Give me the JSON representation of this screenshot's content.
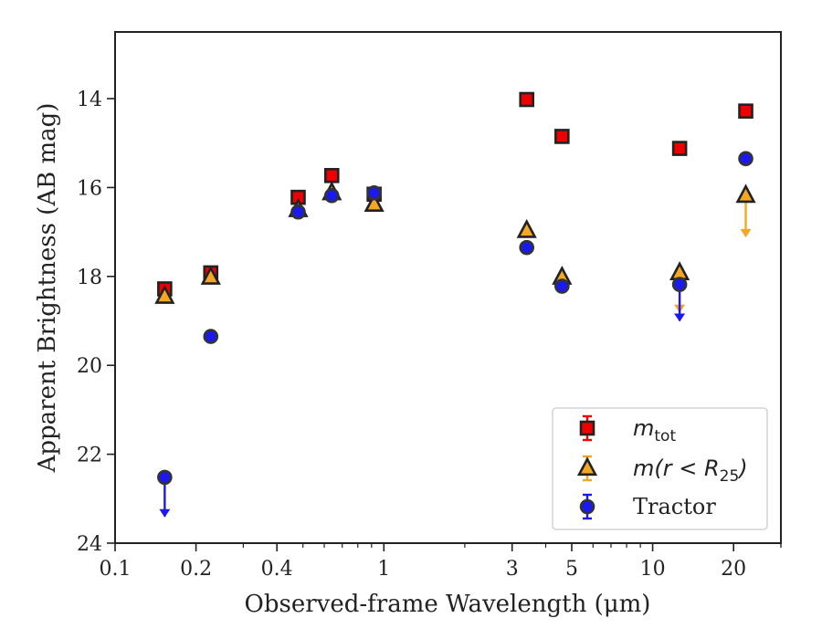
{
  "chart_data": {
    "type": "scatter",
    "xlabel": "Observed-frame Wavelength (μm)",
    "ylabel": "Apparent Brightness (AB mag)",
    "x_scale": "log",
    "xlim": [
      0.1,
      30
    ],
    "ylim": [
      24,
      12.5
    ],
    "y_inverted": true,
    "x_ticks": [
      {
        "value": 0.1,
        "label": "0.1"
      },
      {
        "value": 0.2,
        "label": "0.2"
      },
      {
        "value": 0.4,
        "label": "0.4"
      },
      {
        "value": 1,
        "label": "1"
      },
      {
        "value": 3,
        "label": "3"
      },
      {
        "value": 5,
        "label": "5"
      },
      {
        "value": 10,
        "label": "10"
      },
      {
        "value": 20,
        "label": "20"
      }
    ],
    "y_ticks": [
      {
        "value": 14,
        "label": "14"
      },
      {
        "value": 16,
        "label": "16"
      },
      {
        "value": 18,
        "label": "18"
      },
      {
        "value": 20,
        "label": "20"
      },
      {
        "value": 22,
        "label": "22"
      },
      {
        "value": 24,
        "label": "24"
      }
    ],
    "legend": {
      "position": "lower-right",
      "entries": [
        {
          "label": "m",
          "subscript": "tot"
        },
        {
          "label": "m(r < R",
          "subscript": "25",
          "suffix": ")"
        },
        {
          "label": "Tractor"
        }
      ]
    },
    "series": [
      {
        "marker": "square",
        "color": "#ee0000",
        "edge_color": "#222222",
        "points": [
          {
            "x": 0.153,
            "y": 18.28,
            "err": 0.1
          },
          {
            "x": 0.227,
            "y": 17.92,
            "err": 0.1
          },
          {
            "x": 0.48,
            "y": 16.22,
            "err": 0.1
          },
          {
            "x": 0.64,
            "y": 15.73,
            "err": 0.1
          },
          {
            "x": 0.92,
            "y": 16.15,
            "err": 0.1
          },
          {
            "x": 3.4,
            "y": 14.02,
            "err": 0.05
          },
          {
            "x": 4.6,
            "y": 14.85,
            "err": 0.05
          },
          {
            "x": 12.6,
            "y": 15.12,
            "err": 0.05
          },
          {
            "x": 22.2,
            "y": 14.28,
            "err": 0.05
          }
        ]
      },
      {
        "marker": "triangle",
        "color": "#f5a623",
        "edge_color": "#222222",
        "points": [
          {
            "x": 0.153,
            "y": 18.45,
            "err": 0.1
          },
          {
            "x": 0.227,
            "y": 18.02,
            "err": 0.1
          },
          {
            "x": 0.48,
            "y": 16.5,
            "err": 0.1
          },
          {
            "x": 0.64,
            "y": 16.12,
            "err": 0.1
          },
          {
            "x": 0.92,
            "y": 16.38,
            "err": 0.1
          },
          {
            "x": 3.4,
            "y": 16.97,
            "err": 0.05
          },
          {
            "x": 4.6,
            "y": 18.02,
            "err": 0.05
          },
          {
            "x": 12.6,
            "y": 17.92,
            "upper_limit_to": 18.8
          },
          {
            "x": 22.2,
            "y": 16.18,
            "upper_limit_to": 17.1
          }
        ]
      },
      {
        "marker": "circle",
        "color": "#1a1aee",
        "edge_color": "#333333",
        "points": [
          {
            "x": 0.153,
            "y": 22.52,
            "upper_limit_to": 23.4
          },
          {
            "x": 0.227,
            "y": 19.35,
            "err": 0.1
          },
          {
            "x": 0.48,
            "y": 16.55,
            "err": 0.1
          },
          {
            "x": 0.64,
            "y": 16.18,
            "err": 0.1
          },
          {
            "x": 0.92,
            "y": 16.12,
            "err": 0.1
          },
          {
            "x": 3.4,
            "y": 17.35,
            "err": 0.05
          },
          {
            "x": 4.6,
            "y": 18.22,
            "err": 0.05
          },
          {
            "x": 12.6,
            "y": 18.18,
            "upper_limit_to": 19.0
          },
          {
            "x": 22.2,
            "y": 15.35,
            "upper_limit_to": 15.35
          }
        ]
      }
    ]
  }
}
